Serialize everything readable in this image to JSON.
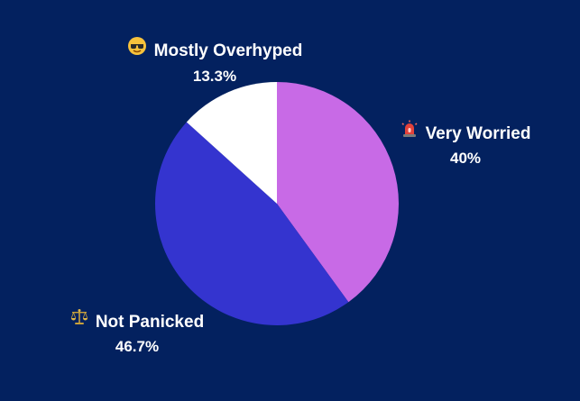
{
  "chart_data": {
    "type": "pie",
    "slices": [
      {
        "label": "Very Worried",
        "value": 40,
        "display": "40%",
        "color": "#c86ae6",
        "icon": "police-light-icon"
      },
      {
        "label": "Not Panicked",
        "value": 46.7,
        "display": "46.7%",
        "color": "#3434cf",
        "icon": "balance-scale-icon"
      },
      {
        "label": "Mostly Overhyped",
        "value": 13.3,
        "display": "13.3%",
        "color": "#ffffff",
        "icon": "sunglasses-face-icon"
      }
    ],
    "start": "12 o'clock",
    "direction": "clockwise"
  },
  "colors": {
    "background": "#03215f",
    "label_text": "#ffffff"
  }
}
